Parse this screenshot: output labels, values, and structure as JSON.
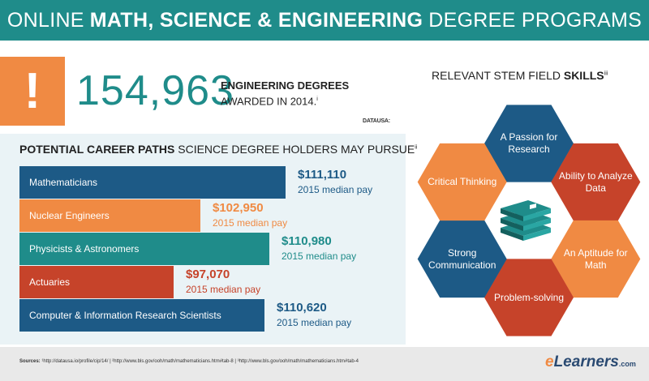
{
  "header": {
    "prefix": "ONLINE",
    "emphasis": "MATH, SCIENCE & ENGINEERING",
    "suffix": "DEGREE PROGRAMS"
  },
  "alert": {
    "symbol": "!"
  },
  "stat": {
    "number": "154,963",
    "label_bold": "ENGINEERING DEGREES",
    "label_rest": "AWARDED IN 2014.",
    "footnote": "i",
    "source": "DATAUSA:"
  },
  "careers": {
    "title_bold": "POTENTIAL CAREER PATHS",
    "title_rest": "SCIENCE DEGREE HOLDERS MAY PURSUE",
    "footnote": "ii",
    "salary_sub": "2015 median pay",
    "items": [
      {
        "name": "Mathematicians",
        "salary": "$111,110",
        "fraction": 1.0,
        "color": "#1d5a86"
      },
      {
        "name": "Nuclear Engineers",
        "salary": "$102,950",
        "fraction": 0.68,
        "color": "#f08a43"
      },
      {
        "name": "Physicists & Astronomers",
        "salary": "$110,980",
        "fraction": 0.94,
        "color": "#1f8c8a"
      },
      {
        "name": "Actuaries",
        "salary": "$97,070",
        "fraction": 0.58,
        "color": "#c6432a"
      },
      {
        "name": "Computer & Information Research Scientists",
        "salary": "$110,620",
        "fraction": 0.92,
        "color": "#1d5a86"
      }
    ]
  },
  "skills": {
    "title_rest": "RELEVANT STEM FIELD",
    "title_bold": "SKILLS",
    "footnote": "iii",
    "items": [
      {
        "label": "A Passion for Research",
        "color": "#1d5a86"
      },
      {
        "label": "Ability to Analyze Data",
        "color": "#c6432a"
      },
      {
        "label": "An Aptitude for Math",
        "color": "#f08a43"
      },
      {
        "label": "Problem-solving",
        "color": "#c6432a"
      },
      {
        "label": "Strong Communication",
        "color": "#1d5a86"
      },
      {
        "label": "Critical Thinking",
        "color": "#f08a43"
      }
    ]
  },
  "footer": {
    "sources_label": "Sources:",
    "sources": "¹http://datausa.io/profile/cip/14/   |   ²http://www.bls.gov/ooh/math/mathematicians.htm#tab-8   |   ³http://www.bls.gov/ooh/math/mathematicians.htm#tab-4",
    "logo_e": "e",
    "logo_rest": "Learners",
    "logo_dotcom": ".com"
  }
}
